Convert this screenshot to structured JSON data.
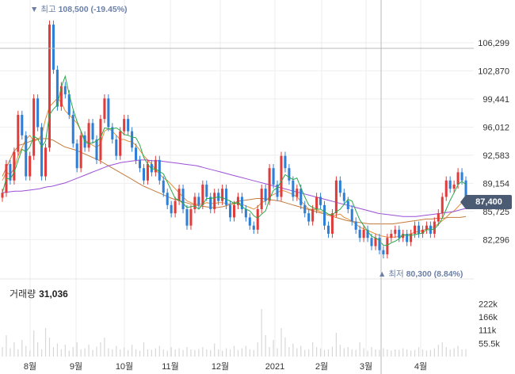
{
  "max_annotation": {
    "marker": "▼",
    "label": "최고",
    "value": "108,500 (-19.45%)"
  },
  "min_annotation": {
    "marker": "▲",
    "label": "최저",
    "value": "80,300 (8.84%)"
  },
  "current_price_tag": "87,400",
  "volume_label": {
    "title": "거래량",
    "value": "31,036"
  },
  "colors": {
    "up": "#e03c3c",
    "down": "#2f7fd6",
    "ma5": "#2aa84a",
    "ma20": "#e0913c",
    "ma60": "#c47a3a",
    "ma120": "#9b4fd6",
    "volume_bar": "#d8d8d8",
    "grid": "#eeeeee",
    "price_tag": "#4a5b73",
    "annotation": "#6b7fa6"
  },
  "chart_data": {
    "type": "line",
    "price_axis": {
      "ticks": [
        106299,
        102870,
        99441,
        96012,
        92583,
        89154,
        85725,
        82296
      ],
      "tick_labels": [
        "106,299",
        "102,870",
        "99,441",
        "96,012",
        "92,583",
        "89,154",
        "85,725",
        "82,296"
      ],
      "range": [
        77500,
        111500
      ]
    },
    "volume_axis": {
      "tick_labels": [
        "222k",
        "166k",
        "111k",
        "55.5k"
      ],
      "ticks": [
        222000,
        166000,
        111000,
        55500
      ],
      "range": [
        0,
        260000
      ]
    },
    "x_axis": {
      "tick_labels": [
        "8월",
        "9월",
        "10월",
        "11월",
        "12월",
        "2021",
        "2월",
        "3월",
        "4월"
      ]
    },
    "highest": 108500,
    "lowest": 80300,
    "last_close": 87400,
    "series": [
      {
        "values": [
          88000,
          91500,
          89500,
          93000,
          97500,
          95000,
          90000,
          92500,
          99500,
          96000,
          90000,
          93500,
          108500,
          103000,
          98500,
          101000,
          100000,
          97500,
          94000,
          91000,
          95000,
          93500,
          96500,
          94500,
          92000,
          97000,
          99500,
          96000,
          94500,
          92500,
          95500,
          97000,
          95500,
          93500,
          92000,
          91000,
          89500,
          91500,
          90500,
          92000,
          89500,
          88000,
          86500,
          85500,
          87000,
          88500,
          86000,
          84000,
          86000,
          87500,
          86500,
          89000,
          87500,
          86000,
          88000,
          87000,
          88500,
          86500,
          85000,
          86500,
          87500,
          86000,
          85000,
          84000,
          83500,
          86000,
          88500,
          87000,
          91000,
          89000,
          87500,
          92500,
          91000,
          89500,
          87500,
          88500,
          86500,
          85500,
          84500,
          86000,
          87500,
          86500,
          84000,
          83000,
          85500,
          89500,
          88000,
          87000,
          86000,
          84500,
          83500,
          82500,
          83500,
          82500,
          81500,
          82500,
          81000,
          80500,
          82500,
          83000,
          83500,
          82500,
          83000,
          82000,
          83000,
          84000,
          83000,
          83500,
          84000,
          83000,
          84500,
          85500,
          87500,
          89500,
          88500,
          89000,
          90500,
          89500,
          87400
        ]
      },
      {
        "values": [
          89500,
          90500,
          90200,
          91000,
          92500,
          93500,
          94500,
          95000,
          94300,
          94500,
          95000,
          97000,
          98500,
          99000,
          99500,
          99000,
          98000,
          97500,
          97000,
          96500,
          95500,
          94500,
          94000,
          93800,
          93500,
          94000,
          95500,
          95800,
          95500,
          95000,
          94500,
          94500,
          94300,
          94200,
          93800,
          93200,
          92500,
          92000,
          91500,
          90800,
          90300,
          89800,
          89500,
          89000,
          88500,
          88000,
          87500,
          87000,
          86800,
          86600,
          86600,
          86600,
          86800,
          86700,
          86700,
          86800,
          86800,
          86700,
          86600,
          86600,
          86800,
          86600,
          86400,
          86200,
          86000,
          86300,
          86800,
          87000,
          87500,
          87800,
          88000,
          88300,
          88200,
          88000,
          87800,
          87500,
          87000,
          86500,
          86000,
          86000,
          85900,
          85700,
          85600,
          85400,
          85200,
          85300,
          85400,
          85000,
          84800,
          84500,
          84200,
          83800,
          83600,
          83400,
          83200,
          83000,
          82800,
          82700,
          82600,
          82600,
          82600,
          82700,
          82800,
          82900,
          83000,
          83200,
          83300,
          83400,
          83600,
          83700,
          83900,
          84200,
          84600,
          85000,
          85500,
          85800,
          86300,
          86800,
          87300
        ]
      },
      {
        "values": [
          90000,
          91500,
          93000,
          93800,
          94000,
          94300,
          94500,
          94600,
          94600,
          94400,
          94000,
          93600,
          93400,
          93200,
          92900,
          92600,
          92300,
          92000,
          91600,
          91200,
          90800,
          90400,
          90000,
          89600,
          89200,
          88800,
          88500,
          88200,
          87900,
          87600,
          87300,
          87100,
          86900,
          86700,
          86500,
          86400,
          86300,
          86200,
          86200,
          86300,
          86500,
          86800,
          87000,
          87100,
          87200,
          87300,
          87300,
          87200,
          87100,
          87000,
          86800,
          86600,
          86400,
          86200,
          86000,
          85800,
          85600,
          85400,
          85200,
          85000,
          84800,
          84600,
          84500,
          84400,
          84300,
          84200,
          84200,
          84200,
          84200,
          84200,
          84300,
          84400,
          84500,
          84600,
          84700,
          84800,
          84800,
          84900,
          84900,
          85000,
          85000,
          85000,
          85100
        ]
      },
      {
        "values": [
          88000,
          88100,
          88200,
          88200,
          88300,
          88400,
          88500,
          88700,
          88800,
          89000,
          89200,
          89500,
          89800,
          90100,
          90400,
          90700,
          91000,
          91300,
          91500,
          91700,
          91800,
          91900,
          92000,
          92000,
          91900,
          91900,
          91800,
          91700,
          91600,
          91500,
          91400,
          91300,
          91100,
          90900,
          90700,
          90500,
          90300,
          90100,
          89900,
          89700,
          89500,
          89300,
          89100,
          88900,
          88700,
          88500,
          88300,
          88100,
          87900,
          87700,
          87500,
          87300,
          87100,
          86900,
          86700,
          86500,
          86300,
          86100,
          85900,
          85700,
          85500,
          85400,
          85300,
          85200,
          85100,
          85100,
          85100,
          85200,
          85300,
          85400,
          85500,
          85600,
          85700,
          85900,
          86100
        ]
      }
    ],
    "volume_values": [
      40000,
      90000,
      35000,
      60000,
      30000,
      70000,
      45000,
      25000,
      110000,
      60000,
      30000,
      120000,
      80000,
      40000,
      55000,
      30000,
      50000,
      25000,
      40000,
      60000,
      30000,
      35000,
      50000,
      28000,
      42000,
      60000,
      80000,
      35000,
      30000,
      45000,
      30000,
      38000,
      28000,
      50000,
      30000,
      25000,
      60000,
      30000,
      28000,
      35000,
      45000,
      30000,
      25000,
      40000,
      30000,
      35000,
      28000,
      40000,
      30000,
      28000,
      32000,
      40000,
      30000,
      28000,
      55000,
      30000,
      25000,
      35000,
      30000,
      45000,
      28000,
      35000,
      45000,
      30000,
      28000,
      60000,
      200000,
      90000,
      40000,
      70000,
      35000,
      120000,
      80000,
      40000,
      55000,
      35000,
      45000,
      28000,
      30000,
      60000,
      40000,
      35000,
      28000,
      30000,
      42000,
      100000,
      50000,
      35000,
      40000,
      30000,
      28000,
      60000,
      35000,
      25000,
      40000,
      30000,
      28000,
      35000,
      30000,
      25000,
      30000,
      28000,
      35000,
      30000,
      25000,
      28000,
      40000,
      30000,
      25000,
      28000,
      35000,
      50000,
      60000,
      40000,
      30000,
      35000,
      45000,
      30000,
      31036
    ]
  }
}
